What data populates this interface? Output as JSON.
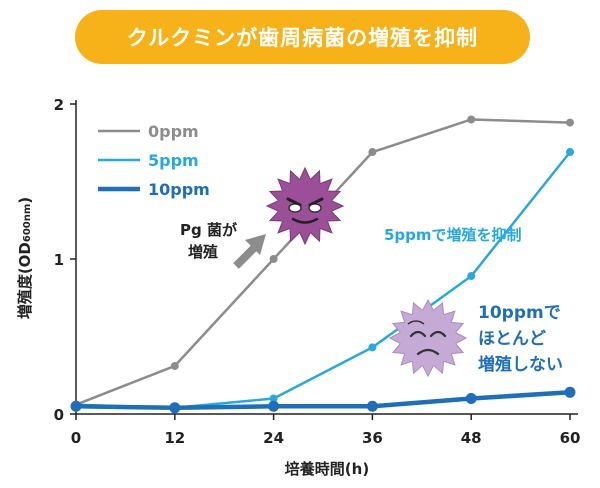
{
  "chart_data": {
    "type": "line",
    "title": "クルクミンが歯周病菌の増殖を抑制",
    "xlabel": "培養時間(h)",
    "ylabel": "増殖度(OD600nm)",
    "ylabel_main": "増殖度(OD",
    "ylabel_sub": "600nm",
    "ylabel_close": ")",
    "x": [
      0,
      12,
      24,
      36,
      48,
      60
    ],
    "x_tick_labels": [
      "0",
      "12",
      "24",
      "36",
      "48",
      "60"
    ],
    "y_ticks": [
      0,
      1,
      2
    ],
    "y_tick_labels": [
      "0",
      "1",
      "2"
    ],
    "xlim": [
      0,
      60
    ],
    "ylim": [
      0,
      2
    ],
    "grid": false,
    "legend_position": "top-left",
    "series": [
      {
        "name": "0ppm",
        "color": "#8c8c8c",
        "values": [
          0.06,
          0.31,
          1.0,
          1.69,
          1.9,
          1.88
        ]
      },
      {
        "name": "5ppm",
        "color": "#29a8e0",
        "values": [
          0.06,
          0.04,
          0.1,
          0.43,
          0.89,
          1.69
        ]
      },
      {
        "name": "10ppm",
        "color": "#1f6fb8",
        "values": [
          0.05,
          0.04,
          0.05,
          0.05,
          0.1,
          0.14
        ]
      }
    ],
    "annotations": {
      "pg_line1": "Pg 菌が",
      "pg_line2": "増殖",
      "five_ppm": "5ppmで増殖を抑制",
      "ten_line1": "10ppmで",
      "ten_line2": "ほとんど",
      "ten_line3": "増殖しない"
    }
  },
  "colors": {
    "title_bg": "#f7b21a",
    "bacteria_angry": "#9b4f96",
    "bacteria_weak": "#c6aad6",
    "arrow": "#8c8c8c",
    "annotation_blue": "#29a8e0",
    "annotation_dark_blue": "#1f6fb8"
  },
  "icons": {
    "angry_bacteria": "angry-bacteria-icon",
    "weak_bacteria": "weak-bacteria-icon",
    "arrow": "arrow-up-right-icon"
  }
}
